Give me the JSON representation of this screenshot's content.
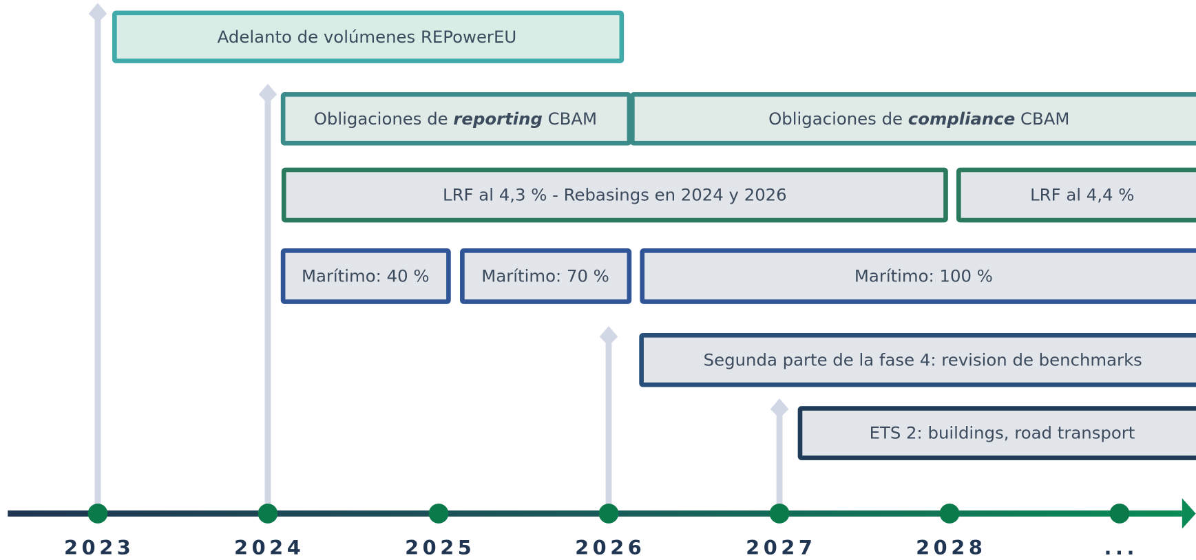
{
  "timeline": {
    "years": [
      "2023",
      "2024",
      "2025",
      "2026",
      "2027",
      "2028",
      "..."
    ],
    "bars": [
      {
        "parts": [
          {
            "text": "Adelanto de volúmenes REPowerEU"
          }
        ]
      },
      {
        "parts": [
          {
            "text": "Obligaciones de "
          },
          {
            "text": "reporting",
            "italic": true
          },
          {
            "text": " CBAM"
          }
        ]
      },
      {
        "parts": [
          {
            "text": "Obligaciones de "
          },
          {
            "text": "compliance",
            "italic": true
          },
          {
            "text": " CBAM"
          }
        ]
      },
      {
        "parts": [
          {
            "text": "LRF al 4,3 % - Rebasings en 2024 y 2026"
          }
        ]
      },
      {
        "parts": [
          {
            "text": "LRF al 4,4 %"
          }
        ]
      },
      {
        "parts": [
          {
            "text": "Marítimo: 40 %"
          }
        ]
      },
      {
        "parts": [
          {
            "text": "Marítimo: 70 %"
          }
        ]
      },
      {
        "parts": [
          {
            "text": "Marítimo: 100 %"
          }
        ]
      },
      {
        "parts": [
          {
            "text": "Segunda parte de la fase 4: revision de benchmarks"
          }
        ]
      },
      {
        "parts": [
          {
            "text": "ETS 2: buildings, road transport"
          }
        ]
      }
    ]
  }
}
